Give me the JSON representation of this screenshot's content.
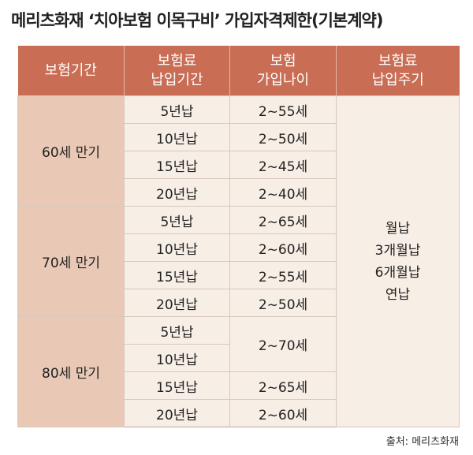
{
  "title": "메리츠화재 ‘치아보험 이목구비’ 가입자격제한(기본계약)",
  "headers": [
    "보험기간",
    "보험료\n납입기간",
    "보험\n가입나이",
    "보험료\n납입주기"
  ],
  "groups": [
    {
      "term": "60세 만기",
      "rows": [
        {
          "period": "5년납",
          "age": "2~55세"
        },
        {
          "period": "10년납",
          "age": "2~50세"
        },
        {
          "period": "15년납",
          "age": "2~45세"
        },
        {
          "period": "20년납",
          "age": "2~40세"
        }
      ]
    },
    {
      "term": "70세 만기",
      "rows": [
        {
          "period": "5년납",
          "age": "2~65세"
        },
        {
          "period": "10년납",
          "age": "2~60세"
        },
        {
          "period": "15년납",
          "age": "2~55세"
        },
        {
          "period": "20년납",
          "age": "2~50세"
        }
      ]
    },
    {
      "term": "80세 만기",
      "rows": [
        {
          "period": "5년납",
          "age": "2~70세"
        },
        {
          "period": "10년납"
        },
        {
          "period": "15년납",
          "age": "2~65세"
        },
        {
          "period": "20년납",
          "age": "2~60세"
        }
      ]
    }
  ],
  "cycle": [
    "월납",
    "3개월납",
    "6개월납",
    "연납"
  ],
  "source": "출처: 메리츠화재"
}
